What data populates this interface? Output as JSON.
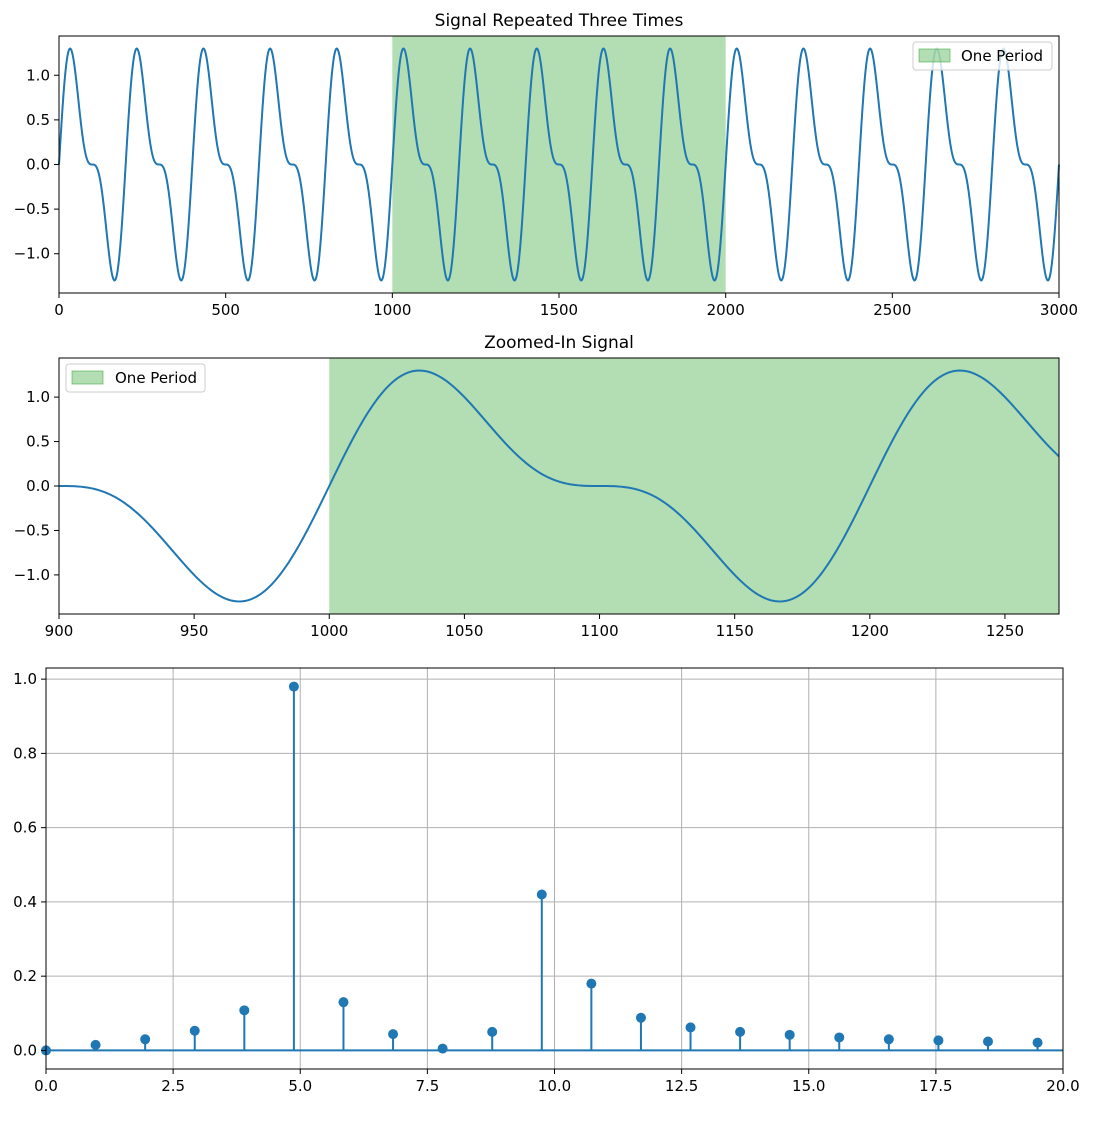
{
  "chart_data": [
    {
      "type": "line",
      "title": "Signal Repeated Three Times",
      "xlabel": "",
      "ylabel": "",
      "xlim": [
        0,
        3000
      ],
      "ylim": [
        -1.44,
        1.44
      ],
      "xticks": [
        0,
        500,
        1000,
        1500,
        2000,
        2500,
        3000
      ],
      "yticks": [
        -1.0,
        -0.5,
        0.0,
        0.5,
        1.0
      ],
      "xtick_labels": [
        "0",
        "500",
        "1000",
        "1500",
        "2000",
        "2500",
        "3000"
      ],
      "ytick_labels": [
        "−1.0",
        "−0.5",
        "0.0",
        "0.5",
        "1.0"
      ],
      "grid": false,
      "series": [
        {
          "color": "#1f77b4",
          "function": "sin(2*pi*5*t) + 0.5*sin(2*pi*10*t), t = (n mod 1000)/1000",
          "n_range": [
            0,
            3000
          ]
        }
      ],
      "shaded_span": {
        "x": [
          1000,
          2000
        ],
        "color": "#2ca02c",
        "opacity": 0.36,
        "legend_label": "One Period"
      },
      "legend": {
        "position": "top-right",
        "entries": [
          "One Period"
        ]
      }
    },
    {
      "type": "line",
      "title": "Zoomed-In Signal",
      "xlabel": "",
      "ylabel": "",
      "xlim": [
        900,
        1270
      ],
      "ylim": [
        -1.44,
        1.44
      ],
      "xticks": [
        900,
        950,
        1000,
        1050,
        1100,
        1150,
        1200,
        1250
      ],
      "yticks": [
        -1.0,
        -0.5,
        0.0,
        0.5,
        1.0
      ],
      "xtick_labels": [
        "900",
        "950",
        "1000",
        "1050",
        "1100",
        "1150",
        "1200",
        "1250"
      ],
      "ytick_labels": [
        "−1.0",
        "−0.5",
        "0.0",
        "0.5",
        "1.0"
      ],
      "grid": false,
      "series": [
        {
          "color": "#1f77b4",
          "function": "sin(2*pi*5*t) + 0.5*sin(2*pi*10*t), t = (n mod 1000)/1000",
          "n_range": [
            900,
            1270
          ]
        }
      ],
      "shaded_span": {
        "x": [
          1000,
          1270
        ],
        "color": "#2ca02c",
        "opacity": 0.36,
        "legend_label": "One Period"
      },
      "legend": {
        "position": "top-left",
        "entries": [
          "One Period"
        ]
      }
    },
    {
      "type": "stem",
      "title": "",
      "xlabel": "",
      "ylabel": "",
      "xlim": [
        0,
        20
      ],
      "ylim": [
        -0.05,
        1.03
      ],
      "xticks": [
        0,
        2.5,
        5,
        7.5,
        10,
        12.5,
        15,
        17.5,
        20
      ],
      "yticks": [
        0.0,
        0.2,
        0.4,
        0.6,
        0.8,
        1.0
      ],
      "xtick_labels": [
        "0.0",
        "2.5",
        "5.0",
        "7.5",
        "10.0",
        "12.5",
        "15.0",
        "17.5",
        "20.0"
      ],
      "ytick_labels": [
        "0.0",
        "0.2",
        "0.4",
        "0.6",
        "0.8",
        "1.0"
      ],
      "grid": true,
      "color": "#1f77b4",
      "x": [
        0,
        0.975,
        1.95,
        2.925,
        3.9,
        4.875,
        5.85,
        6.825,
        7.8,
        8.775,
        9.75,
        10.725,
        11.7,
        12.675,
        13.65,
        14.625,
        15.6,
        16.575,
        17.55,
        18.525,
        19.5
      ],
      "values": [
        0.0,
        0.015,
        0.03,
        0.053,
        0.108,
        0.98,
        0.13,
        0.044,
        0.005,
        0.05,
        0.42,
        0.18,
        0.088,
        0.062,
        0.05,
        0.042,
        0.035,
        0.03,
        0.027,
        0.024,
        0.021
      ]
    }
  ]
}
